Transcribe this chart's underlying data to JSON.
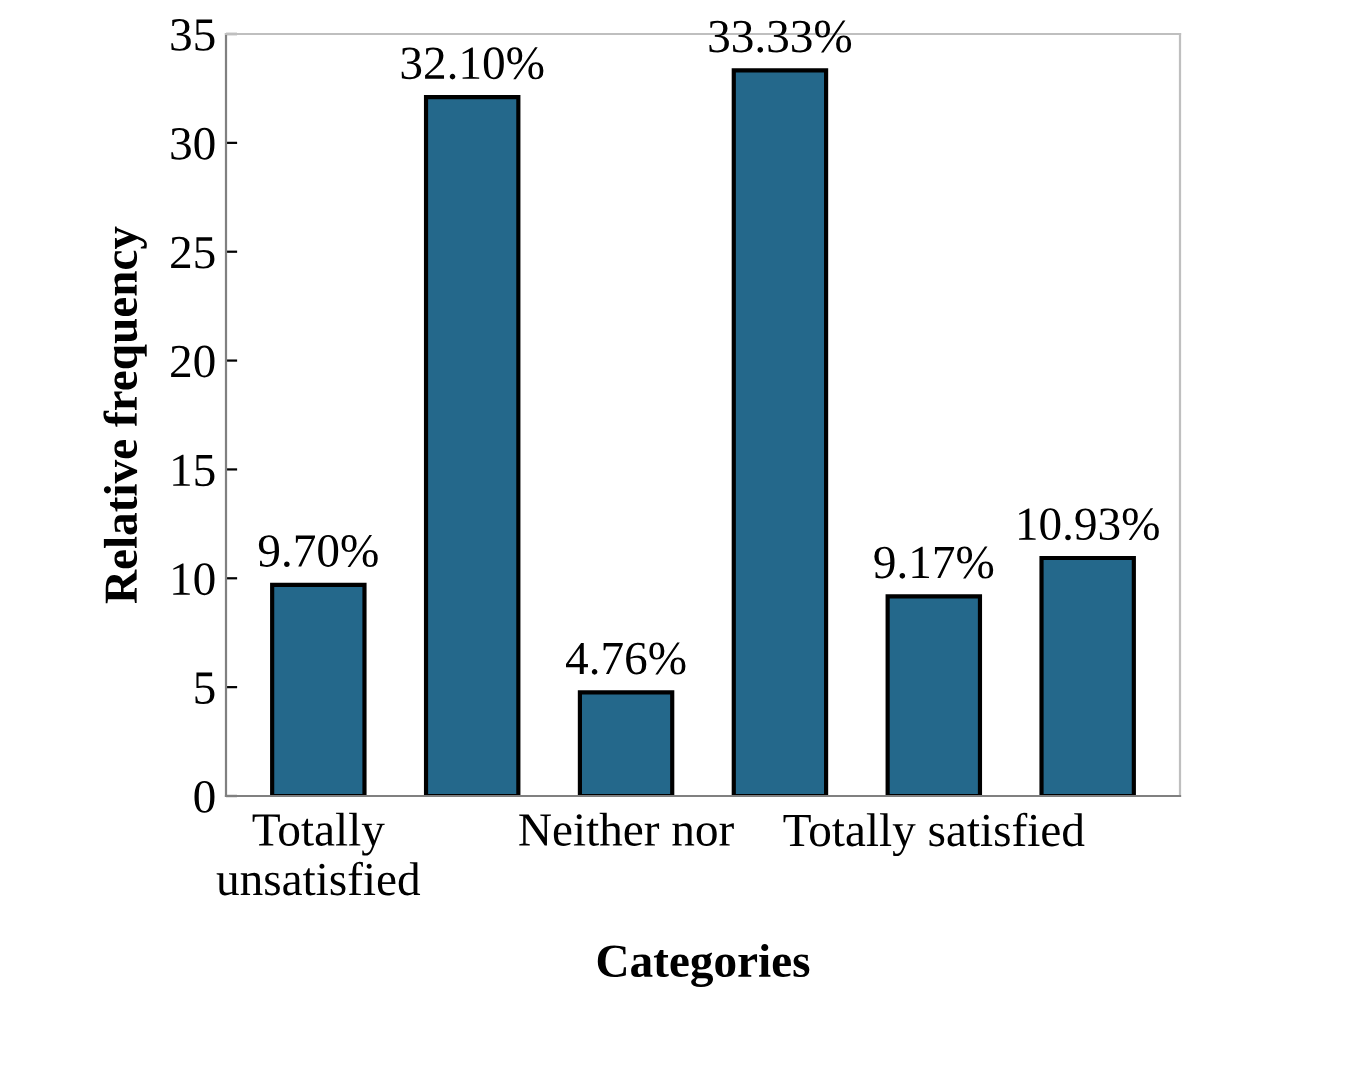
{
  "chart_data": {
    "type": "bar",
    "xlabel": "Categories",
    "ylabel": "Relative frequency",
    "categories": [
      "Totally\nunsatisfied",
      null,
      "Neither nor",
      null,
      "Totally satisfied",
      null
    ],
    "values": [
      9.7,
      32.1,
      4.76,
      33.33,
      9.17,
      10.93
    ],
    "value_labels": [
      "9.70%",
      "32.10%",
      "4.76%",
      "33.33%",
      "9.17%",
      "10.93%"
    ],
    "color": "#24688b",
    "ylim": [
      0,
      35
    ],
    "yticks": [
      0,
      5,
      10,
      15,
      20,
      25,
      30,
      35
    ],
    "grid": false,
    "legend": false
  }
}
